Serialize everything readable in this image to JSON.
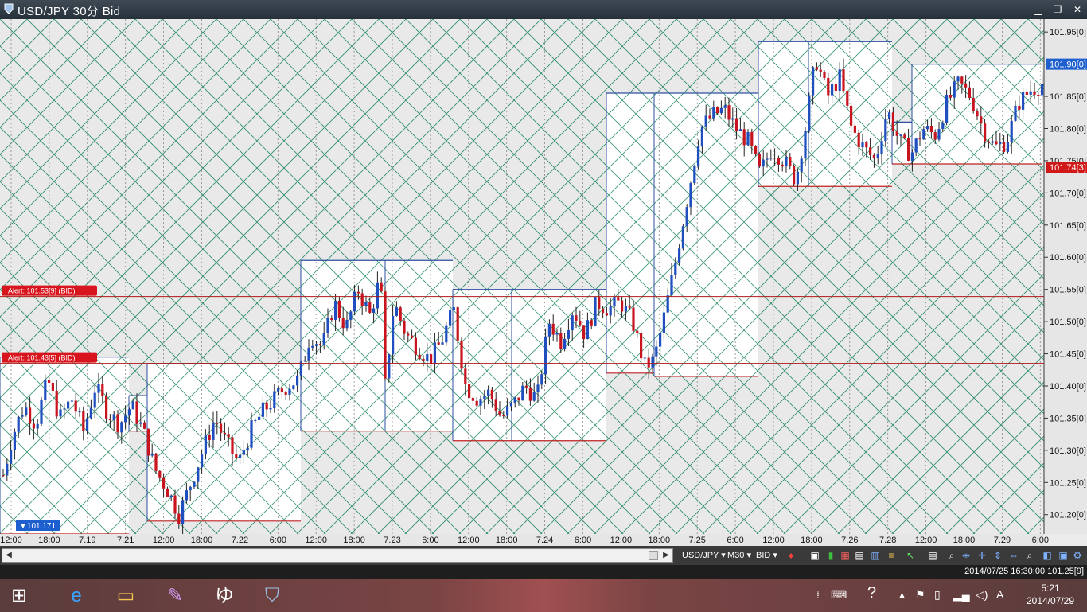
{
  "window": {
    "title": "USD/JPY 30分 Bid",
    "minimize": "▁",
    "restore": "❐",
    "close": "✕"
  },
  "chart_data": {
    "type": "candlestick",
    "ylim": [
      101.17,
      101.97
    ],
    "y_ticks": [
      "101.95[0]",
      "101.90[0]",
      "101.85[0]",
      "101.80[0]",
      "101.75[0]",
      "101.70[0]",
      "101.65[0]",
      "101.60[0]",
      "101.55[0]",
      "101.50[0]",
      "101.45[0]",
      "101.40[0]",
      "101.35[0]",
      "101.30[0]",
      "101.25[0]",
      "101.20[0]"
    ],
    "x_labels": [
      "12:00",
      "18:00",
      "7.19",
      "7.21",
      "12:00",
      "18:00",
      "7.22",
      "6:00",
      "12:00",
      "18:00",
      "7.23",
      "6:00",
      "12:00",
      "18:00",
      "7.24",
      "6:00",
      "12:00",
      "18:00",
      "7.25",
      "6:00",
      "12:00",
      "18:00",
      "7.26",
      "7.28",
      "12:00",
      "18:00",
      "7.29",
      "6:00"
    ],
    "price_markers": [
      {
        "label": "101.90[0]",
        "value": 101.9,
        "color": "#1e5fd0"
      },
      {
        "label": "101.74[3]",
        "value": 101.74,
        "color": "#d01818"
      }
    ],
    "alerts": [
      {
        "label": "Alert: 101.53[9] (BID)",
        "value": 101.539
      },
      {
        "label": "Alert: 101.43[5] (BID)",
        "value": 101.435
      }
    ],
    "low_marker": "▼101.171",
    "boxes": [
      {
        "x1": 0,
        "x2": 162,
        "hi": 101.445,
        "lo": 101.17
      },
      {
        "x1": 162,
        "x2": 185,
        "hi": 101.385,
        "lo": 101.33
      },
      {
        "x1": 185,
        "x2": 378,
        "hi": 101.435,
        "lo": 101.19
      },
      {
        "x1": 378,
        "x2": 484,
        "hi": 101.595,
        "lo": 101.33
      },
      {
        "x1": 484,
        "x2": 569,
        "hi": 101.595,
        "lo": 101.33
      },
      {
        "x1": 569,
        "x2": 643,
        "hi": 101.55,
        "lo": 101.315
      },
      {
        "x1": 643,
        "x2": 762,
        "hi": 101.55,
        "lo": 101.315
      },
      {
        "x1": 762,
        "x2": 822,
        "hi": 101.855,
        "lo": 101.42
      },
      {
        "x1": 822,
        "x2": 953,
        "hi": 101.855,
        "lo": 101.415
      },
      {
        "x1": 953,
        "x2": 1016,
        "hi": 101.935,
        "lo": 101.71
      },
      {
        "x1": 1016,
        "x2": 1121,
        "hi": 101.935,
        "lo": 101.71
      },
      {
        "x1": 1121,
        "x2": 1146,
        "hi": 101.81,
        "lo": 101.745
      },
      {
        "x1": 1146,
        "x2": 1310,
        "hi": 101.9,
        "lo": 101.745
      }
    ],
    "path": [
      [
        0,
        101.24
      ],
      [
        15,
        101.32
      ],
      [
        30,
        101.37
      ],
      [
        45,
        101.34
      ],
      [
        60,
        101.41
      ],
      [
        75,
        101.35
      ],
      [
        90,
        101.38
      ],
      [
        105,
        101.33
      ],
      [
        120,
        101.4
      ],
      [
        135,
        101.36
      ],
      [
        150,
        101.34
      ],
      [
        165,
        101.37
      ],
      [
        180,
        101.33
      ],
      [
        195,
        101.27
      ],
      [
        210,
        101.24
      ],
      [
        225,
        101.2
      ],
      [
        240,
        101.25
      ],
      [
        255,
        101.3
      ],
      [
        270,
        101.35
      ],
      [
        285,
        101.31
      ],
      [
        300,
        101.28
      ],
      [
        315,
        101.33
      ],
      [
        330,
        101.36
      ],
      [
        345,
        101.38
      ],
      [
        360,
        101.4
      ],
      [
        375,
        101.41
      ],
      [
        390,
        101.48
      ],
      [
        405,
        101.46
      ],
      [
        420,
        101.53
      ],
      [
        435,
        101.49
      ],
      [
        450,
        101.55
      ],
      [
        465,
        101.51
      ],
      [
        478,
        101.57
      ],
      [
        484,
        101.4
      ],
      [
        495,
        101.53
      ],
      [
        510,
        101.48
      ],
      [
        525,
        101.46
      ],
      [
        540,
        101.44
      ],
      [
        555,
        101.47
      ],
      [
        570,
        101.52
      ],
      [
        585,
        101.4
      ],
      [
        600,
        101.38
      ],
      [
        615,
        101.39
      ],
      [
        630,
        101.35
      ],
      [
        645,
        101.37
      ],
      [
        660,
        101.4
      ],
      [
        675,
        101.38
      ],
      [
        690,
        101.5
      ],
      [
        705,
        101.47
      ],
      [
        720,
        101.52
      ],
      [
        735,
        101.48
      ],
      [
        750,
        101.53
      ],
      [
        765,
        101.52
      ],
      [
        780,
        101.53
      ],
      [
        795,
        101.5
      ],
      [
        810,
        101.43
      ],
      [
        822,
        101.44
      ],
      [
        835,
        101.51
      ],
      [
        850,
        101.6
      ],
      [
        865,
        101.7
      ],
      [
        880,
        101.8
      ],
      [
        895,
        101.82
      ],
      [
        910,
        101.83
      ],
      [
        925,
        101.8
      ],
      [
        940,
        101.78
      ],
      [
        955,
        101.73
      ],
      [
        970,
        101.77
      ],
      [
        985,
        101.75
      ],
      [
        1000,
        101.72
      ],
      [
        1012,
        101.8
      ],
      [
        1025,
        101.91
      ],
      [
        1040,
        101.85
      ],
      [
        1055,
        101.88
      ],
      [
        1070,
        101.8
      ],
      [
        1085,
        101.77
      ],
      [
        1100,
        101.75
      ],
      [
        1115,
        101.83
      ],
      [
        1130,
        101.78
      ],
      [
        1145,
        101.76
      ],
      [
        1160,
        101.8
      ],
      [
        1175,
        101.79
      ],
      [
        1190,
        101.84
      ],
      [
        1205,
        101.87
      ],
      [
        1220,
        101.85
      ],
      [
        1235,
        101.8
      ],
      [
        1250,
        101.77
      ],
      [
        1265,
        101.78
      ],
      [
        1280,
        101.84
      ],
      [
        1295,
        101.86
      ],
      [
        1310,
        101.87
      ]
    ]
  },
  "toolbar": {
    "symbol": "USD/JPY ▾",
    "timeframe": "M30 ▾",
    "side": "BID ▾"
  },
  "status": {
    "text": "2014/07/25 16:30:00  101.25[9]"
  },
  "taskbar": {
    "time": "5:21",
    "date": "2014/07/29",
    "ime": "A"
  }
}
